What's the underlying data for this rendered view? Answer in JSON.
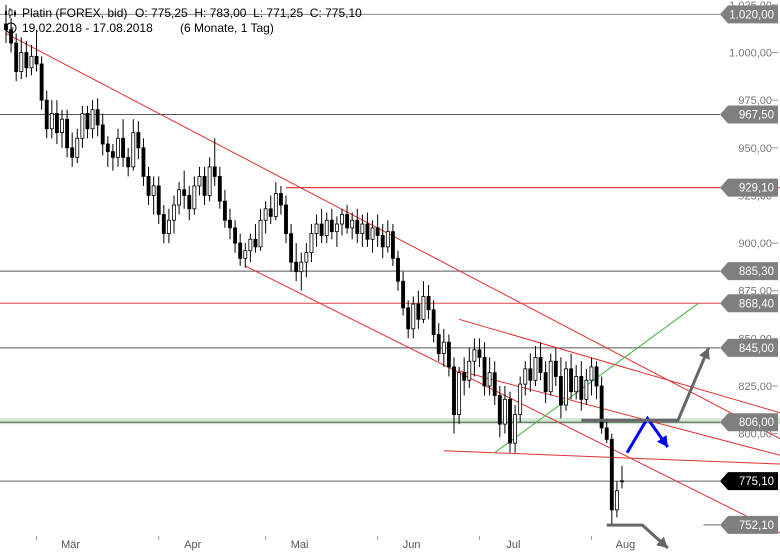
{
  "header": {
    "title": "Platin (FOREX, bid)",
    "ohlc": "O: 775,25  H: 783,00  L: 771,25  C: 775,10",
    "range": "19.02.2018 - 17.08.2018",
    "period": "(6 Monate, 1 Tag)"
  },
  "chart_data": {
    "type": "candlestick",
    "title": "Platin (FOREX, bid)",
    "x_tick_labels": [
      "Mär",
      "Apr",
      "Mai",
      "Jun",
      "Jul",
      "Aug"
    ],
    "y_ticks": [
      1025,
      1000,
      975,
      950,
      925,
      900,
      875,
      850,
      825,
      800
    ],
    "y_tick_labels": [
      "1.025,00",
      "1.000,00",
      "975,00",
      "950,00",
      "925,00",
      "900,00",
      "875,00",
      "850,00",
      "825,00",
      "800,00"
    ],
    "ylim": [
      751,
      1026
    ],
    "candles": [
      {
        "o": 1015,
        "h": 1025,
        "l": 1005,
        "c": 1012
      },
      {
        "o": 1012,
        "h": 1018,
        "l": 1000,
        "c": 1005
      },
      {
        "o": 1005,
        "h": 1010,
        "l": 985,
        "c": 990
      },
      {
        "o": 990,
        "h": 1008,
        "l": 986,
        "c": 1000
      },
      {
        "o": 1000,
        "h": 1006,
        "l": 987,
        "c": 992
      },
      {
        "o": 992,
        "h": 1004,
        "l": 988,
        "c": 998
      },
      {
        "o": 998,
        "h": 1012,
        "l": 990,
        "c": 994
      },
      {
        "o": 994,
        "h": 998,
        "l": 970,
        "c": 975
      },
      {
        "o": 975,
        "h": 980,
        "l": 955,
        "c": 960
      },
      {
        "o": 960,
        "h": 975,
        "l": 955,
        "c": 968
      },
      {
        "o": 968,
        "h": 975,
        "l": 952,
        "c": 958
      },
      {
        "o": 958,
        "h": 970,
        "l": 950,
        "c": 965
      },
      {
        "o": 965,
        "h": 970,
        "l": 945,
        "c": 950
      },
      {
        "o": 950,
        "h": 958,
        "l": 940,
        "c": 945
      },
      {
        "o": 945,
        "h": 960,
        "l": 942,
        "c": 955
      },
      {
        "o": 955,
        "h": 972,
        "l": 950,
        "c": 968
      },
      {
        "o": 968,
        "h": 972,
        "l": 955,
        "c": 960
      },
      {
        "o": 960,
        "h": 975,
        "l": 955,
        "c": 970
      },
      {
        "o": 970,
        "h": 976,
        "l": 956,
        "c": 962
      },
      {
        "o": 962,
        "h": 968,
        "l": 946,
        "c": 952
      },
      {
        "o": 952,
        "h": 956,
        "l": 940,
        "c": 948
      },
      {
        "o": 948,
        "h": 952,
        "l": 938,
        "c": 945
      },
      {
        "o": 945,
        "h": 960,
        "l": 940,
        "c": 955
      },
      {
        "o": 955,
        "h": 965,
        "l": 940,
        "c": 945
      },
      {
        "o": 945,
        "h": 950,
        "l": 935,
        "c": 940
      },
      {
        "o": 940,
        "h": 965,
        "l": 938,
        "c": 958
      },
      {
        "o": 958,
        "h": 964,
        "l": 944,
        "c": 950
      },
      {
        "o": 950,
        "h": 955,
        "l": 930,
        "c": 935
      },
      {
        "o": 935,
        "h": 940,
        "l": 920,
        "c": 925
      },
      {
        "o": 925,
        "h": 935,
        "l": 915,
        "c": 930
      },
      {
        "o": 930,
        "h": 935,
        "l": 910,
        "c": 915
      },
      {
        "o": 915,
        "h": 920,
        "l": 900,
        "c": 905
      },
      {
        "o": 905,
        "h": 918,
        "l": 900,
        "c": 912
      },
      {
        "o": 912,
        "h": 925,
        "l": 905,
        "c": 920
      },
      {
        "o": 920,
        "h": 932,
        "l": 915,
        "c": 928
      },
      {
        "o": 928,
        "h": 938,
        "l": 918,
        "c": 925
      },
      {
        "o": 925,
        "h": 930,
        "l": 912,
        "c": 918
      },
      {
        "o": 918,
        "h": 935,
        "l": 915,
        "c": 930
      },
      {
        "o": 930,
        "h": 940,
        "l": 925,
        "c": 935
      },
      {
        "o": 935,
        "h": 940,
        "l": 920,
        "c": 925
      },
      {
        "o": 925,
        "h": 945,
        "l": 922,
        "c": 940
      },
      {
        "o": 940,
        "h": 955,
        "l": 930,
        "c": 935
      },
      {
        "o": 935,
        "h": 940,
        "l": 918,
        "c": 922
      },
      {
        "o": 922,
        "h": 928,
        "l": 908,
        "c": 912
      },
      {
        "o": 912,
        "h": 918,
        "l": 902,
        "c": 908
      },
      {
        "o": 908,
        "h": 912,
        "l": 895,
        "c": 900
      },
      {
        "o": 900,
        "h": 905,
        "l": 888,
        "c": 892
      },
      {
        "o": 892,
        "h": 900,
        "l": 887,
        "c": 896
      },
      {
        "o": 896,
        "h": 905,
        "l": 890,
        "c": 902
      },
      {
        "o": 902,
        "h": 910,
        "l": 895,
        "c": 898
      },
      {
        "o": 898,
        "h": 918,
        "l": 896,
        "c": 912
      },
      {
        "o": 912,
        "h": 922,
        "l": 905,
        "c": 918
      },
      {
        "o": 918,
        "h": 925,
        "l": 910,
        "c": 914
      },
      {
        "o": 914,
        "h": 932,
        "l": 912,
        "c": 926
      },
      {
        "o": 926,
        "h": 930,
        "l": 915,
        "c": 920
      },
      {
        "o": 920,
        "h": 925,
        "l": 900,
        "c": 905
      },
      {
        "o": 905,
        "h": 910,
        "l": 885,
        "c": 890
      },
      {
        "o": 890,
        "h": 900,
        "l": 880,
        "c": 885
      },
      {
        "o": 885,
        "h": 895,
        "l": 875,
        "c": 890
      },
      {
        "o": 890,
        "h": 900,
        "l": 882,
        "c": 895
      },
      {
        "o": 895,
        "h": 910,
        "l": 890,
        "c": 905
      },
      {
        "o": 905,
        "h": 915,
        "l": 898,
        "c": 910
      },
      {
        "o": 910,
        "h": 918,
        "l": 900,
        "c": 904
      },
      {
        "o": 904,
        "h": 916,
        "l": 900,
        "c": 912
      },
      {
        "o": 912,
        "h": 918,
        "l": 902,
        "c": 906
      },
      {
        "o": 906,
        "h": 914,
        "l": 898,
        "c": 910
      },
      {
        "o": 910,
        "h": 918,
        "l": 904,
        "c": 915
      },
      {
        "o": 915,
        "h": 920,
        "l": 905,
        "c": 908
      },
      {
        "o": 908,
        "h": 916,
        "l": 902,
        "c": 912
      },
      {
        "o": 912,
        "h": 918,
        "l": 900,
        "c": 905
      },
      {
        "o": 905,
        "h": 915,
        "l": 898,
        "c": 910
      },
      {
        "o": 910,
        "h": 916,
        "l": 898,
        "c": 902
      },
      {
        "o": 902,
        "h": 912,
        "l": 895,
        "c": 908
      },
      {
        "o": 908,
        "h": 915,
        "l": 898,
        "c": 904
      },
      {
        "o": 904,
        "h": 910,
        "l": 892,
        "c": 898
      },
      {
        "o": 898,
        "h": 912,
        "l": 895,
        "c": 906
      },
      {
        "o": 906,
        "h": 910,
        "l": 888,
        "c": 892
      },
      {
        "o": 892,
        "h": 896,
        "l": 875,
        "c": 880
      },
      {
        "o": 880,
        "h": 885,
        "l": 862,
        "c": 866
      },
      {
        "o": 866,
        "h": 870,
        "l": 850,
        "c": 855
      },
      {
        "o": 855,
        "h": 872,
        "l": 850,
        "c": 868
      },
      {
        "o": 868,
        "h": 875,
        "l": 855,
        "c": 860
      },
      {
        "o": 860,
        "h": 880,
        "l": 858,
        "c": 872
      },
      {
        "o": 872,
        "h": 878,
        "l": 860,
        "c": 865
      },
      {
        "o": 865,
        "h": 870,
        "l": 848,
        "c": 852
      },
      {
        "o": 852,
        "h": 858,
        "l": 838,
        "c": 842
      },
      {
        "o": 842,
        "h": 855,
        "l": 835,
        "c": 848
      },
      {
        "o": 848,
        "h": 852,
        "l": 830,
        "c": 835
      },
      {
        "o": 835,
        "h": 840,
        "l": 800,
        "c": 810
      },
      {
        "o": 810,
        "h": 835,
        "l": 805,
        "c": 832
      },
      {
        "o": 832,
        "h": 840,
        "l": 820,
        "c": 828
      },
      {
        "o": 828,
        "h": 845,
        "l": 824,
        "c": 838
      },
      {
        "o": 838,
        "h": 850,
        "l": 830,
        "c": 844
      },
      {
        "o": 844,
        "h": 850,
        "l": 835,
        "c": 840
      },
      {
        "o": 840,
        "h": 848,
        "l": 820,
        "c": 825
      },
      {
        "o": 825,
        "h": 840,
        "l": 820,
        "c": 832
      },
      {
        "o": 832,
        "h": 838,
        "l": 815,
        "c": 820
      },
      {
        "o": 820,
        "h": 825,
        "l": 798,
        "c": 805
      },
      {
        "o": 805,
        "h": 825,
        "l": 800,
        "c": 818
      },
      {
        "o": 818,
        "h": 822,
        "l": 790,
        "c": 795
      },
      {
        "o": 795,
        "h": 815,
        "l": 790,
        "c": 810
      },
      {
        "o": 810,
        "h": 830,
        "l": 806,
        "c": 826
      },
      {
        "o": 826,
        "h": 838,
        "l": 820,
        "c": 834
      },
      {
        "o": 834,
        "h": 842,
        "l": 822,
        "c": 828
      },
      {
        "o": 828,
        "h": 846,
        "l": 825,
        "c": 840
      },
      {
        "o": 840,
        "h": 848,
        "l": 828,
        "c": 832
      },
      {
        "o": 832,
        "h": 838,
        "l": 816,
        "c": 822
      },
      {
        "o": 822,
        "h": 842,
        "l": 820,
        "c": 838
      },
      {
        "o": 838,
        "h": 845,
        "l": 825,
        "c": 830
      },
      {
        "o": 830,
        "h": 840,
        "l": 808,
        "c": 815
      },
      {
        "o": 815,
        "h": 838,
        "l": 812,
        "c": 834
      },
      {
        "o": 834,
        "h": 842,
        "l": 818,
        "c": 822
      },
      {
        "o": 822,
        "h": 836,
        "l": 818,
        "c": 830
      },
      {
        "o": 830,
        "h": 838,
        "l": 812,
        "c": 818
      },
      {
        "o": 818,
        "h": 834,
        "l": 815,
        "c": 828
      },
      {
        "o": 828,
        "h": 840,
        "l": 820,
        "c": 835
      },
      {
        "o": 835,
        "h": 838,
        "l": 818,
        "c": 825
      },
      {
        "o": 825,
        "h": 830,
        "l": 800,
        "c": 803
      },
      {
        "o": 803,
        "h": 808,
        "l": 795,
        "c": 797
      },
      {
        "o": 797,
        "h": 800,
        "l": 752,
        "c": 760
      },
      {
        "o": 760,
        "h": 775,
        "l": 756,
        "c": 770
      },
      {
        "o": 775.25,
        "h": 783,
        "l": 771.25,
        "c": 775.1
      }
    ],
    "horizontal_levels": [
      {
        "value": 1020,
        "label": "1.020,00",
        "line_color": "#888888",
        "tag_color": "#7f7f7f"
      },
      {
        "value": 967.5,
        "label": "967,50",
        "line_color": "#555555",
        "tag_color": "#7f7f7f"
      },
      {
        "value": 929.1,
        "label": "929,10",
        "line_color": "#e04040",
        "tag_color": "#7f7f7f"
      },
      {
        "value": 885.3,
        "label": "885,30",
        "line_color": "#555555",
        "tag_color": "#7f7f7f"
      },
      {
        "value": 868.4,
        "label": "868,40",
        "line_color": "#e04040",
        "tag_color": "#7f7f7f"
      },
      {
        "value": 845,
        "label": "845,00",
        "line_color": "#555555",
        "tag_color": "#7f7f7f"
      },
      {
        "value": 806,
        "label": "806,00",
        "line_color": "#555555",
        "tag_color": "#7f7f7f"
      },
      {
        "value": 775.1,
        "label": "775,10",
        "line_color": "#666666",
        "tag_color": "#000000"
      },
      {
        "value": 752.1,
        "label": "752,10",
        "line_color": "#666666",
        "tag_color": "#7f7f7f"
      }
    ],
    "trend_lines": [
      {
        "from": [
          0,
          1010
        ],
        "to": [
          143,
          810
        ],
        "color": "#e03030"
      },
      {
        "from": [
          47,
          888
        ],
        "to": [
          143,
          760
        ],
        "color": "#e03030"
      },
      {
        "from": [
          89,
          833
        ],
        "to": [
          143,
          795
        ],
        "color": "#e03030"
      },
      {
        "from": [
          89,
          860
        ],
        "to": [
          143,
          818
        ],
        "color": "#e03030"
      },
      {
        "from": [
          55,
          929.1
        ],
        "to": [
          143,
          929.1
        ],
        "color": "#e03030"
      },
      {
        "from": [
          86,
          791
        ],
        "to": [
          143,
          785
        ],
        "color": "#e03030"
      },
      {
        "from": [
          96,
          790
        ],
        "to": [
          136,
          868.4
        ],
        "color": "#40b040"
      }
    ],
    "support_zone": {
      "value": 806,
      "color": "#cfe8cf"
    },
    "projections": [
      {
        "color": "#0000ff",
        "points": [
          [
            122,
            790
          ],
          [
            126,
            808
          ],
          [
            130,
            793
          ]
        ]
      },
      {
        "color": "#666666",
        "points": [
          [
            113,
            807
          ],
          [
            132,
            807
          ],
          [
            138,
            845
          ]
        ]
      },
      {
        "color": "#666666",
        "points": [
          [
            118,
            752
          ],
          [
            125,
            752
          ],
          [
            130,
            740
          ]
        ]
      }
    ],
    "grid": false,
    "colors": {
      "up": "#ffffff",
      "down": "#000000",
      "wick": "#000000"
    }
  }
}
